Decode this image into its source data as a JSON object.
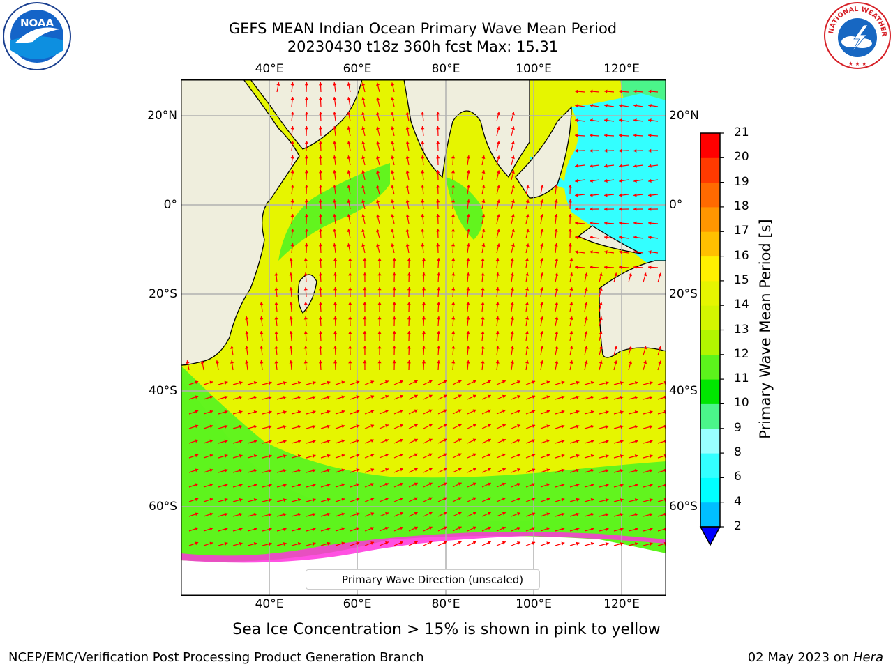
{
  "title": {
    "line1": "GEFS MEAN Indian Ocean Primary Wave Mean Period",
    "line2": "20230430 t18z 360h fcst   Max: 15.31"
  },
  "logos": {
    "left": {
      "text": "NOAA",
      "icon": "noaa-logo-icon"
    },
    "right": {
      "text": "NATIONAL WEATHER SERVICE",
      "icon": "nws-logo-icon"
    }
  },
  "map": {
    "lon_labels": [
      "40°E",
      "60°E",
      "80°E",
      "100°E",
      "120°E"
    ],
    "lat_labels": [
      "20°N",
      "0°",
      "20°S",
      "40°S",
      "60°S"
    ],
    "colors": {
      "land": "#efeedd",
      "ocean_main": "#e6f500",
      "ocean_green": "#62f41e",
      "ocean_cyan": "#33ffff",
      "ice_pink": "#ff33dd",
      "arrow": "#ff0000",
      "grid": "#b0b0b0"
    }
  },
  "legend": {
    "label": "Primary Wave Direction (unscaled)"
  },
  "colorbar": {
    "label": "Primary Wave Mean Period [s]",
    "ticks": [
      "2",
      "4",
      "6",
      "8",
      "9",
      "10",
      "11",
      "12",
      "13",
      "14",
      "15",
      "16",
      "17",
      "18",
      "19",
      "20",
      "21"
    ],
    "colors": [
      "#0066ff",
      "#00bfff",
      "#00ffff",
      "#33ffff",
      "#99ffff",
      "#4bf58a",
      "#00e600",
      "#5cf31c",
      "#b2f500",
      "#d4f500",
      "#e6f500",
      "#fff000",
      "#ffc000",
      "#ff9600",
      "#ff6a00",
      "#ff3a00",
      "#ff0000"
    ],
    "extend_color": "#0000ff"
  },
  "subtitle": "Sea Ice Concentration > 15% is shown in pink to yellow",
  "footer": {
    "left": "NCEP/EMC/Verification Post Processing Product Generation Branch",
    "right_prefix": "02 May 2023 on ",
    "right_italic": "Hera"
  }
}
